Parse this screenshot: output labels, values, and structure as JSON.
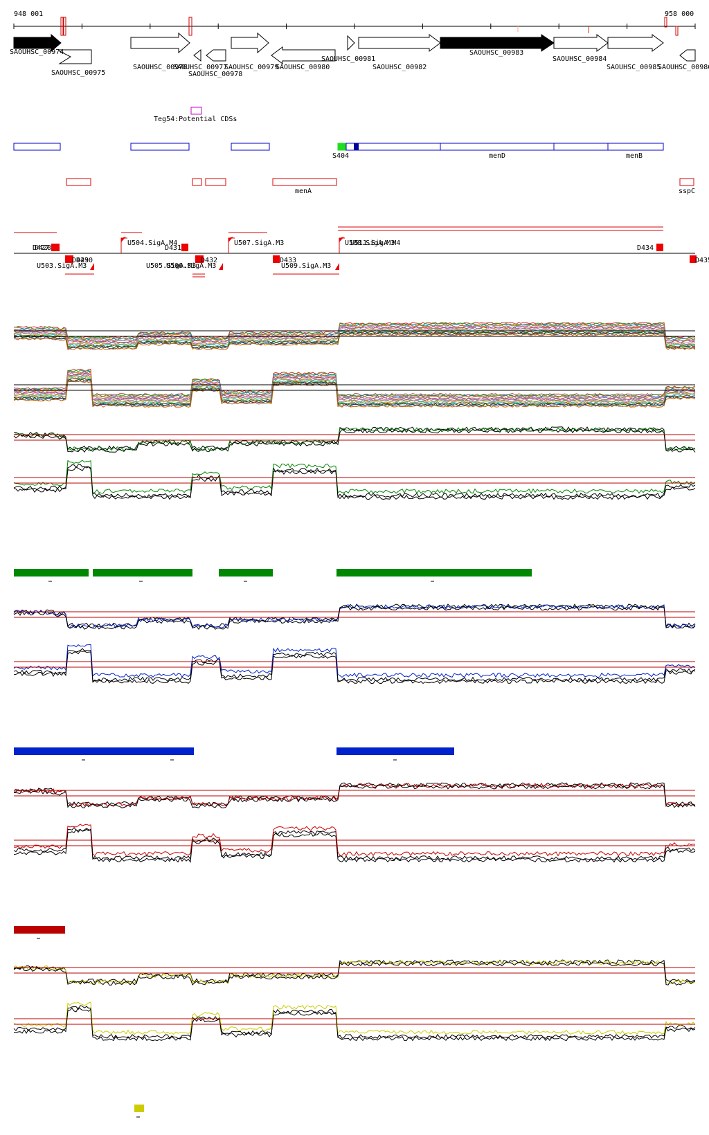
{
  "ruler": {
    "start_label": "948 001",
    "end_label": "958 000"
  },
  "genes": [
    {
      "name": "SAOUHSC_00974"
    },
    {
      "name": "SAOUHSC_00975"
    },
    {
      "name": "SAOUHSC_00976"
    },
    {
      "name": "SAOUHSC_00977"
    },
    {
      "name": "SAOUHSC_00978"
    },
    {
      "name": "SAOUHSC_00979"
    },
    {
      "name": "SAOUHSC_00980"
    },
    {
      "name": "SAOUHSC_00981"
    },
    {
      "name": "SAOUHSC_00982"
    },
    {
      "name": "SAOUHSC_00983"
    },
    {
      "name": "SAOUHSC_00984"
    },
    {
      "name": "SAOUHSC_00985"
    },
    {
      "name": "SAOUHSC_00986"
    }
  ],
  "teg_label": "Teg54:Potential CDSs",
  "blue_feature_labels": [
    "S404",
    "menD",
    "menB"
  ],
  "red_feature_labels": [
    "menA",
    "sspC"
  ],
  "regulation_labels": [
    "D427",
    "D428",
    "U504.SigA.M4",
    "D431",
    "U507.SigA.M3",
    "U508.SigA.M3",
    "U511.SigA.M4",
    "D434",
    "U503.SigA.M3",
    "D429",
    "D430",
    "U505.SigA.M3",
    "U506.SigA.M3",
    "D432",
    "D433",
    "U509.SigA.M3",
    "D435"
  ],
  "colors": {
    "accent_green": "#008800",
    "accent_blue": "#0022cc",
    "accent_darkred": "#bb0000",
    "accent_yellow": "#cccc00",
    "gene_filled": "#000000",
    "feature_outline_blue": "#0000cc",
    "feature_outline_red": "#dd0000",
    "threshold_line": "#bb0000"
  }
}
